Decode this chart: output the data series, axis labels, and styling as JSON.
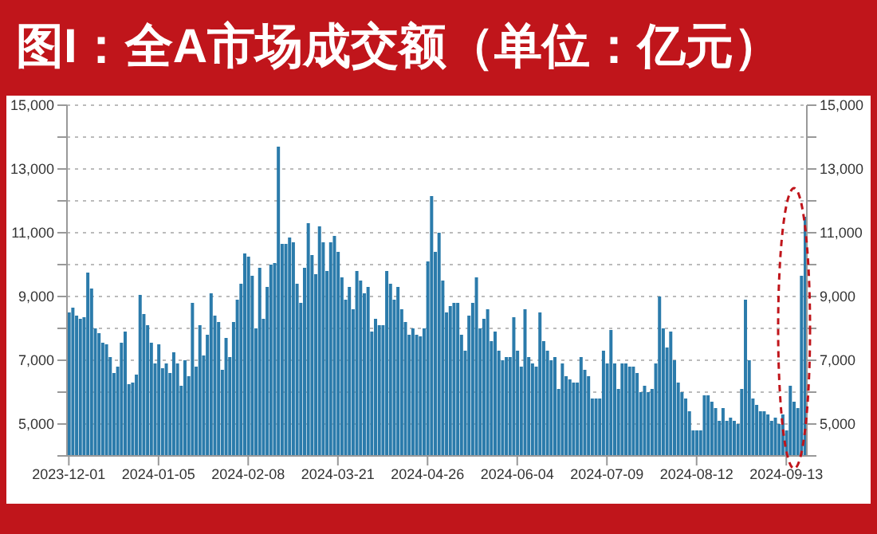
{
  "chart_data": {
    "type": "bar",
    "title": "图I：全A市场成交额（单位：亿元）",
    "categories": [
      "2023-12-01",
      null,
      null,
      null,
      null,
      null,
      null,
      null,
      null,
      null,
      null,
      null,
      null,
      null,
      null,
      null,
      null,
      null,
      null,
      null,
      null,
      null,
      null,
      null,
      "2024-01-05",
      null,
      null,
      null,
      null,
      null,
      null,
      null,
      null,
      null,
      null,
      null,
      null,
      null,
      null,
      null,
      null,
      null,
      null,
      null,
      null,
      null,
      null,
      null,
      "2024-02-08",
      null,
      null,
      null,
      null,
      null,
      null,
      null,
      null,
      null,
      null,
      null,
      null,
      null,
      null,
      null,
      null,
      null,
      null,
      null,
      null,
      null,
      null,
      null,
      "2024-03-21",
      null,
      null,
      null,
      null,
      null,
      null,
      null,
      null,
      null,
      null,
      null,
      null,
      null,
      null,
      null,
      null,
      null,
      null,
      null,
      null,
      null,
      null,
      null,
      "2024-04-26",
      null,
      null,
      null,
      null,
      null,
      null,
      null,
      null,
      null,
      null,
      null,
      null,
      null,
      null,
      null,
      null,
      null,
      null,
      null,
      null,
      null,
      null,
      null,
      "2024-06-04",
      null,
      null,
      null,
      null,
      null,
      null,
      null,
      null,
      null,
      null,
      null,
      null,
      null,
      null,
      null,
      null,
      null,
      null,
      null,
      null,
      null,
      null,
      null,
      "2024-07-09",
      null,
      null,
      null,
      null,
      null,
      null,
      null,
      null,
      null,
      null,
      null,
      null,
      null,
      null,
      null,
      null,
      null,
      null,
      null,
      null,
      null,
      null,
      null,
      "2024-08-12",
      null,
      null,
      null,
      null,
      null,
      null,
      null,
      null,
      null,
      null,
      null,
      null,
      null,
      null,
      null,
      null,
      null,
      null,
      null,
      null,
      null,
      null,
      null,
      "2024-09-13",
      null,
      null,
      null,
      null,
      null
    ],
    "series": [
      {
        "color": "#2b7bab",
        "values": [
          8500,
          8650,
          8400,
          8300,
          8350,
          9750,
          9250,
          8000,
          7850,
          7550,
          7500,
          7100,
          6600,
          6800,
          7550,
          7900,
          6250,
          6300,
          6550,
          9050,
          8450,
          8100,
          7550,
          6900,
          7500,
          6750,
          6900,
          6600,
          7250,
          6900,
          6200,
          7000,
          6500,
          8800,
          6800,
          8100,
          7150,
          7800,
          9100,
          8400,
          8200,
          6700,
          7700,
          7100,
          8200,
          8900,
          9400,
          10350,
          10250,
          9650,
          8000,
          9900,
          8300,
          9300,
          10000,
          10050,
          13700,
          10650,
          10650,
          10850,
          10700,
          9400,
          8800,
          9900,
          11300,
          10300,
          9700,
          11200,
          10700,
          9800,
          10700,
          10900,
          10400,
          9600,
          8900,
          9300,
          8600,
          9800,
          9500,
          9100,
          9300,
          7900,
          8300,
          8100,
          8100,
          9800,
          9400,
          8900,
          9300,
          8600,
          8200,
          7800,
          8000,
          7800,
          7750,
          8000,
          10100,
          12150,
          10400,
          11000,
          9500,
          8500,
          8700,
          8800,
          8800,
          7800,
          7300,
          8400,
          8800,
          9600,
          8000,
          8300,
          8600,
          7600,
          7900,
          7300,
          7000,
          7100,
          7100,
          8350,
          7300,
          6800,
          8600,
          7100,
          6900,
          6800,
          8500,
          7600,
          7300,
          7000,
          7100,
          6100,
          6900,
          6500,
          6400,
          6300,
          6300,
          7100,
          6700,
          6500,
          5800,
          5800,
          5800,
          7300,
          6900,
          7950,
          6900,
          6100,
          6900,
          6900,
          6800,
          6800,
          6600,
          6000,
          6200,
          6000,
          6100,
          6900,
          9000,
          8000,
          7400,
          7900,
          7000,
          6300,
          6000,
          5800,
          5400,
          4800,
          4800,
          4800,
          5900,
          5900,
          5700,
          5500,
          5100,
          5500,
          5100,
          5200,
          5100,
          5000,
          6100,
          8900,
          7000,
          5800,
          5600,
          5400,
          5400,
          5300,
          5100,
          5200,
          5000,
          5300,
          4800,
          6200,
          5700,
          5500,
          9650,
          11500
        ]
      }
    ],
    "ylim": [
      4000,
      15000
    ],
    "yticks": [
      {
        "value": 4000,
        "label": null
      },
      "5,000",
      {
        "value": 6000,
        "label": null
      },
      {
        "value": 7000,
        "label": "7,000"
      },
      {
        "value": 8000,
        "label": null
      },
      {
        "value": 9000,
        "label": "9,000"
      },
      {
        "value": 10000,
        "label": null
      },
      {
        "value": 11000,
        "label": "11,000"
      },
      {
        "value": 12000,
        "label": null
      },
      {
        "value": 13000,
        "label": "13,000"
      },
      {
        "value": 14000,
        "label": null
      },
      {
        "value": 15000,
        "label": "15,000"
      }
    ],
    "y2lim": [
      4000,
      15000
    ],
    "y2ticks": [
      {
        "value": 4000,
        "label": null
      },
      {
        "value": 5000,
        "label": "5,000"
      },
      {
        "value": 6000,
        "label": null
      },
      {
        "value": 7000,
        "label": "7,000"
      },
      {
        "value": 8000,
        "label": null
      },
      {
        "value": 9000,
        "label": "9,000"
      },
      {
        "value": 10000,
        "label": null
      },
      {
        "value": 11000,
        "label": "11,000"
      },
      {
        "value": 12000,
        "label": null
      },
      {
        "value": 13000,
        "label": "13,000"
      },
      {
        "value": 14000,
        "label": null
      },
      {
        "value": 15000,
        "label": "15,000"
      }
    ],
    "grid": "y"
  }
}
